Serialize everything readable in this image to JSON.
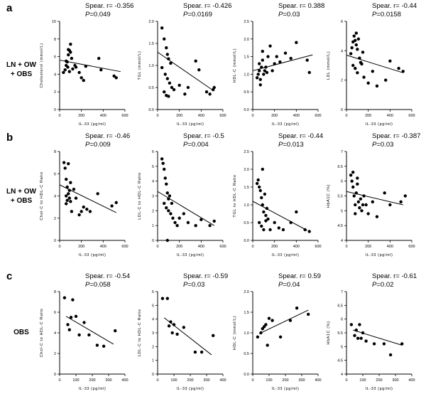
{
  "panel_letters": [
    "a",
    "b",
    "c"
  ],
  "group_labels": [
    {
      "lines": [
        "LN + OW",
        "+ OBS"
      ]
    },
    {
      "lines": [
        "LN + OW",
        "+ OBS"
      ]
    },
    {
      "lines": [
        "OBS"
      ]
    }
  ],
  "p_prefix": "P",
  "chart_data": [
    {
      "type": "scatter",
      "row": 0,
      "col": 0,
      "title": "Spear. r= -0.356",
      "p_value": "=0.049",
      "xlabel": "IL-33 (pg/ml)",
      "ylabel": "Cholesterol (mmol/L)",
      "xlim": [
        0,
        600
      ],
      "ylim": [
        0,
        10
      ],
      "xticks": [
        0,
        200,
        400,
        600
      ],
      "yticks": [
        0,
        2,
        4,
        6,
        8,
        10
      ],
      "x": [
        35,
        50,
        60,
        70,
        80,
        90,
        100,
        110,
        60,
        75,
        90,
        120,
        140,
        150,
        180,
        200,
        220,
        240,
        360,
        380,
        500,
        520,
        80,
        100
      ],
      "y": [
        4.2,
        4.5,
        5.0,
        5.4,
        6.2,
        6.7,
        6.5,
        5.8,
        5.5,
        4.8,
        4.3,
        4.6,
        5.0,
        4.8,
        4.2,
        3.6,
        3.3,
        4.9,
        5.8,
        4.5,
        3.8,
        3.6,
        6.8,
        7.4
      ],
      "fit": [
        [
          0,
          5.6
        ],
        [
          560,
          4.3
        ]
      ]
    },
    {
      "type": "scatter",
      "row": 0,
      "col": 1,
      "title": "Spear. r= -0.426",
      "p_value": "=0.0169",
      "xlabel": "IL-33 (pg/ml)",
      "ylabel": "TGL (mmol/L)",
      "xlim": [
        0,
        600
      ],
      "ylim": [
        0,
        2.0
      ],
      "xticks": [
        0,
        200,
        400,
        600
      ],
      "yticks": [
        0.0,
        0.5,
        1.0,
        1.5,
        2.0
      ],
      "x": [
        40,
        60,
        80,
        90,
        100,
        120,
        40,
        70,
        90,
        110,
        130,
        60,
        80,
        100,
        150,
        200,
        250,
        280,
        350,
        380,
        450,
        480,
        510,
        520
      ],
      "y": [
        1.85,
        1.6,
        1.4,
        1.25,
        1.15,
        1.05,
        0.95,
        0.8,
        0.7,
        0.6,
        0.5,
        0.4,
        0.32,
        0.3,
        0.45,
        0.55,
        0.35,
        0.5,
        1.1,
        0.9,
        0.4,
        0.35,
        0.45,
        0.5
      ],
      "fit": [
        [
          0,
          1.3
        ],
        [
          500,
          0.45
        ]
      ]
    },
    {
      "type": "scatter",
      "row": 0,
      "col": 2,
      "title": "Spear. r= 0.388",
      "p_value": "=0.03",
      "xlabel": "IL-33 (pg/ml)",
      "ylabel": "HDL-C (mmol/L)",
      "xlim": [
        0,
        600
      ],
      "ylim": [
        0,
        2.5
      ],
      "xticks": [
        0,
        200,
        400,
        600
      ],
      "yticks": [
        0.0,
        0.5,
        1.0,
        1.5,
        2.0,
        2.5
      ],
      "x": [
        40,
        50,
        60,
        70,
        80,
        90,
        100,
        120,
        140,
        160,
        180,
        200,
        220,
        250,
        300,
        350,
        400,
        500,
        70,
        90,
        110,
        60,
        130,
        520
      ],
      "y": [
        0.9,
        1.0,
        1.1,
        0.85,
        1.2,
        1.4,
        1.0,
        1.2,
        1.5,
        1.8,
        1.1,
        1.3,
        1.5,
        1.35,
        1.6,
        1.45,
        1.9,
        1.4,
        0.7,
        1.65,
        1.1,
        1.3,
        1.05,
        1.05
      ],
      "fit": [
        [
          0,
          1.1
        ],
        [
          550,
          1.55
        ]
      ]
    },
    {
      "type": "scatter",
      "row": 0,
      "col": 3,
      "title": "Spear. r= -0.44",
      "p_value": "=0.0158",
      "xlabel": "IL-33 (pg/ml)",
      "ylabel": "LDL (mmol/L)",
      "xlim": [
        0,
        600
      ],
      "ylim": [
        0,
        6
      ],
      "xticks": [
        0,
        200,
        400,
        600
      ],
      "yticks": [
        0,
        2,
        4,
        6
      ],
      "x": [
        40,
        50,
        60,
        70,
        80,
        90,
        100,
        110,
        120,
        130,
        60,
        80,
        100,
        140,
        160,
        200,
        240,
        280,
        360,
        400,
        480,
        520,
        90,
        150
      ],
      "y": [
        3.8,
        4.2,
        4.6,
        5.0,
        4.7,
        4.4,
        4.1,
        4.8,
        3.5,
        3.2,
        3.0,
        2.8,
        2.5,
        3.1,
        2.2,
        1.8,
        2.6,
        1.6,
        2.0,
        3.3,
        2.8,
        2.6,
        5.2,
        3.9
      ],
      "fit": [
        [
          0,
          3.7
        ],
        [
          520,
          2.5
        ]
      ]
    },
    {
      "type": "scatter",
      "row": 1,
      "col": 0,
      "title": "Spear. r= -0.46",
      "p_value": "=0.009",
      "xlabel": "IL-33 (pg/ml)",
      "ylabel": "Chol-C to HDL-C Ratio",
      "xlim": [
        0,
        600
      ],
      "ylim": [
        0,
        8
      ],
      "xticks": [
        0,
        200,
        400,
        600
      ],
      "yticks": [
        0,
        2,
        4,
        6,
        8
      ],
      "x": [
        40,
        50,
        60,
        70,
        80,
        90,
        100,
        60,
        70,
        90,
        110,
        130,
        150,
        180,
        200,
        220,
        250,
        280,
        350,
        480,
        520,
        80,
        100,
        60
      ],
      "y": [
        7.0,
        6.5,
        5.5,
        4.8,
        4.2,
        3.8,
        3.5,
        4.0,
        3.6,
        4.5,
        2.6,
        4.6,
        3.8,
        2.3,
        2.6,
        3.0,
        2.8,
        2.6,
        4.2,
        3.1,
        3.4,
        6.9,
        5.2,
        3.3
      ],
      "fit": [
        [
          0,
          5.0
        ],
        [
          520,
          2.5
        ]
      ]
    },
    {
      "type": "scatter",
      "row": 1,
      "col": 1,
      "title": "Spear. r= -0.5",
      "p_value": "=0.004",
      "xlabel": "IL-33 (pg/ml)",
      "ylabel": "LDL-C to HDL-C Ratio",
      "xlim": [
        0,
        600
      ],
      "ylim": [
        0,
        6
      ],
      "xticks": [
        0,
        200,
        400,
        600
      ],
      "yticks": [
        0,
        1,
        2,
        3,
        4,
        5,
        6
      ],
      "x": [
        40,
        50,
        60,
        70,
        80,
        90,
        100,
        60,
        80,
        100,
        120,
        140,
        160,
        180,
        200,
        240,
        280,
        350,
        400,
        480,
        520,
        90,
        110,
        130
      ],
      "y": [
        5.5,
        5.2,
        4.8,
        4.2,
        3.8,
        3.2,
        2.8,
        2.5,
        2.2,
        2.0,
        1.8,
        1.5,
        1.2,
        1.0,
        1.5,
        1.8,
        1.2,
        1.0,
        1.4,
        1.0,
        1.3,
        0.0,
        3.0,
        2.5
      ],
      "fit": [
        [
          0,
          3.3
        ],
        [
          520,
          1.0
        ]
      ]
    },
    {
      "type": "scatter",
      "row": 1,
      "col": 2,
      "title": "Spear. r= -0.44",
      "p_value": "=0.013",
      "xlabel": "IL-33 (pg/ml)",
      "ylabel": "TGL to HDL-C Ratio",
      "xlim": [
        0,
        600
      ],
      "ylim": [
        0,
        2.5
      ],
      "xticks": [
        0,
        200,
        400,
        600
      ],
      "yticks": [
        0.0,
        0.5,
        1.0,
        1.5,
        2.0,
        2.5
      ],
      "x": [
        40,
        50,
        60,
        70,
        80,
        90,
        100,
        120,
        60,
        80,
        100,
        120,
        140,
        160,
        200,
        240,
        280,
        350,
        400,
        480,
        520,
        90,
        110,
        130
      ],
      "y": [
        1.6,
        1.7,
        1.5,
        1.4,
        1.2,
        1.0,
        0.8,
        0.7,
        0.5,
        0.4,
        0.3,
        0.55,
        0.6,
        0.3,
        0.5,
        0.35,
        0.3,
        0.5,
        0.8,
        0.3,
        0.25,
        2.0,
        1.3,
        0.9
      ],
      "fit": [
        [
          0,
          1.1
        ],
        [
          500,
          0.28
        ]
      ]
    },
    {
      "type": "scatter",
      "row": 1,
      "col": 3,
      "title": "Spear. r= -0.387",
      "p_value": "=0.03",
      "xlabel": "IL-33 (pg/ml)",
      "ylabel": "HbA1C (%)",
      "xlim": [
        0,
        600
      ],
      "ylim": [
        4.0,
        7.0
      ],
      "xticks": [
        0,
        200,
        400,
        600
      ],
      "yticks": [
        4.0,
        4.5,
        5.0,
        5.5,
        6.0,
        6.5,
        7.0
      ],
      "x": [
        40,
        50,
        60,
        70,
        80,
        90,
        100,
        110,
        120,
        140,
        160,
        180,
        200,
        240,
        280,
        350,
        400,
        500,
        540,
        80,
        100,
        130,
        60,
        150
      ],
      "y": [
        6.2,
        6.0,
        5.8,
        5.5,
        5.2,
        5.6,
        6.1,
        5.3,
        5.1,
        5.0,
        5.5,
        5.2,
        4.9,
        5.3,
        4.8,
        5.6,
        5.2,
        5.3,
        5.5,
        4.9,
        5.9,
        5.4,
        6.3,
        5.2
      ],
      "fit": [
        [
          0,
          5.65
        ],
        [
          520,
          5.2
        ]
      ]
    },
    {
      "type": "scatter",
      "row": 2,
      "col": 0,
      "title": "Spear. r= -0.54",
      "p_value": "=0.058",
      "xlabel": "IL-33 (pg/ml)",
      "ylabel": "Chol-C to HDL-C Ratio",
      "xlim": [
        0,
        400
      ],
      "ylim": [
        0,
        8
      ],
      "xticks": [
        0,
        100,
        200,
        300,
        400
      ],
      "yticks": [
        0,
        2,
        4,
        6,
        8
      ],
      "x": [
        30,
        50,
        60,
        70,
        80,
        100,
        120,
        150,
        180,
        230,
        270,
        340
      ],
      "y": [
        7.4,
        4.8,
        4.3,
        5.5,
        7.2,
        5.6,
        3.8,
        5.0,
        3.8,
        2.8,
        2.7,
        4.2
      ],
      "fit": [
        [
          40,
          5.6
        ],
        [
          330,
          2.9
        ]
      ]
    },
    {
      "type": "scatter",
      "row": 2,
      "col": 1,
      "title": "Spear. r= -0.59",
      "p_value": "=0.03",
      "xlabel": "IL-33 (pg/ml)",
      "ylabel": "LDL-C to HDL-C Ratio",
      "xlim": [
        0,
        400
      ],
      "ylim": [
        0,
        6
      ],
      "xticks": [
        0,
        100,
        200,
        300,
        400
      ],
      "yticks": [
        0,
        1,
        2,
        3,
        4,
        5,
        6
      ],
      "x": [
        30,
        60,
        70,
        80,
        90,
        100,
        120,
        160,
        230,
        270,
        340
      ],
      "y": [
        5.5,
        5.5,
        3.5,
        3.8,
        3.0,
        3.6,
        2.9,
        3.4,
        1.6,
        1.6,
        2.8
      ],
      "fit": [
        [
          40,
          4.1
        ],
        [
          330,
          1.4
        ]
      ]
    },
    {
      "type": "scatter",
      "row": 2,
      "col": 2,
      "title": "Spear. r= 0.59",
      "p_value": "=0.04",
      "xlabel": "IL-33 (pg/ml)",
      "ylabel": "HDL-C (mmol/L)",
      "xlim": [
        0,
        400
      ],
      "ylim": [
        0.0,
        2.0
      ],
      "xticks": [
        0,
        100,
        200,
        300,
        400
      ],
      "yticks": [
        0.0,
        0.5,
        1.0,
        1.5,
        2.0
      ],
      "x": [
        30,
        50,
        60,
        70,
        80,
        90,
        100,
        120,
        170,
        230,
        270,
        340
      ],
      "y": [
        0.9,
        1.0,
        1.1,
        1.15,
        1.2,
        0.7,
        1.35,
        1.3,
        0.9,
        1.3,
        1.6,
        1.45
      ],
      "fit": [
        [
          40,
          0.98
        ],
        [
          340,
          1.55
        ]
      ]
    },
    {
      "type": "scatter",
      "row": 2,
      "col": 3,
      "title": "Spear. r= -0.61",
      "p_value": "=0.02",
      "xlabel": "IL-33 (pg/ml)",
      "ylabel": "HbA1C (%)",
      "xlim": [
        0,
        400
      ],
      "ylim": [
        4.0,
        7.0
      ],
      "xticks": [
        0,
        100,
        200,
        300,
        400
      ],
      "yticks": [
        4.0,
        4.5,
        5.0,
        5.5,
        6.0,
        6.5,
        7.0
      ],
      "x": [
        30,
        50,
        60,
        70,
        80,
        90,
        100,
        120,
        170,
        230,
        270,
        340
      ],
      "y": [
        5.8,
        5.4,
        5.6,
        5.3,
        5.8,
        5.3,
        5.5,
        5.2,
        5.1,
        5.1,
        4.7,
        5.1
      ],
      "fit": [
        [
          40,
          5.6
        ],
        [
          340,
          5.05
        ]
      ]
    }
  ]
}
